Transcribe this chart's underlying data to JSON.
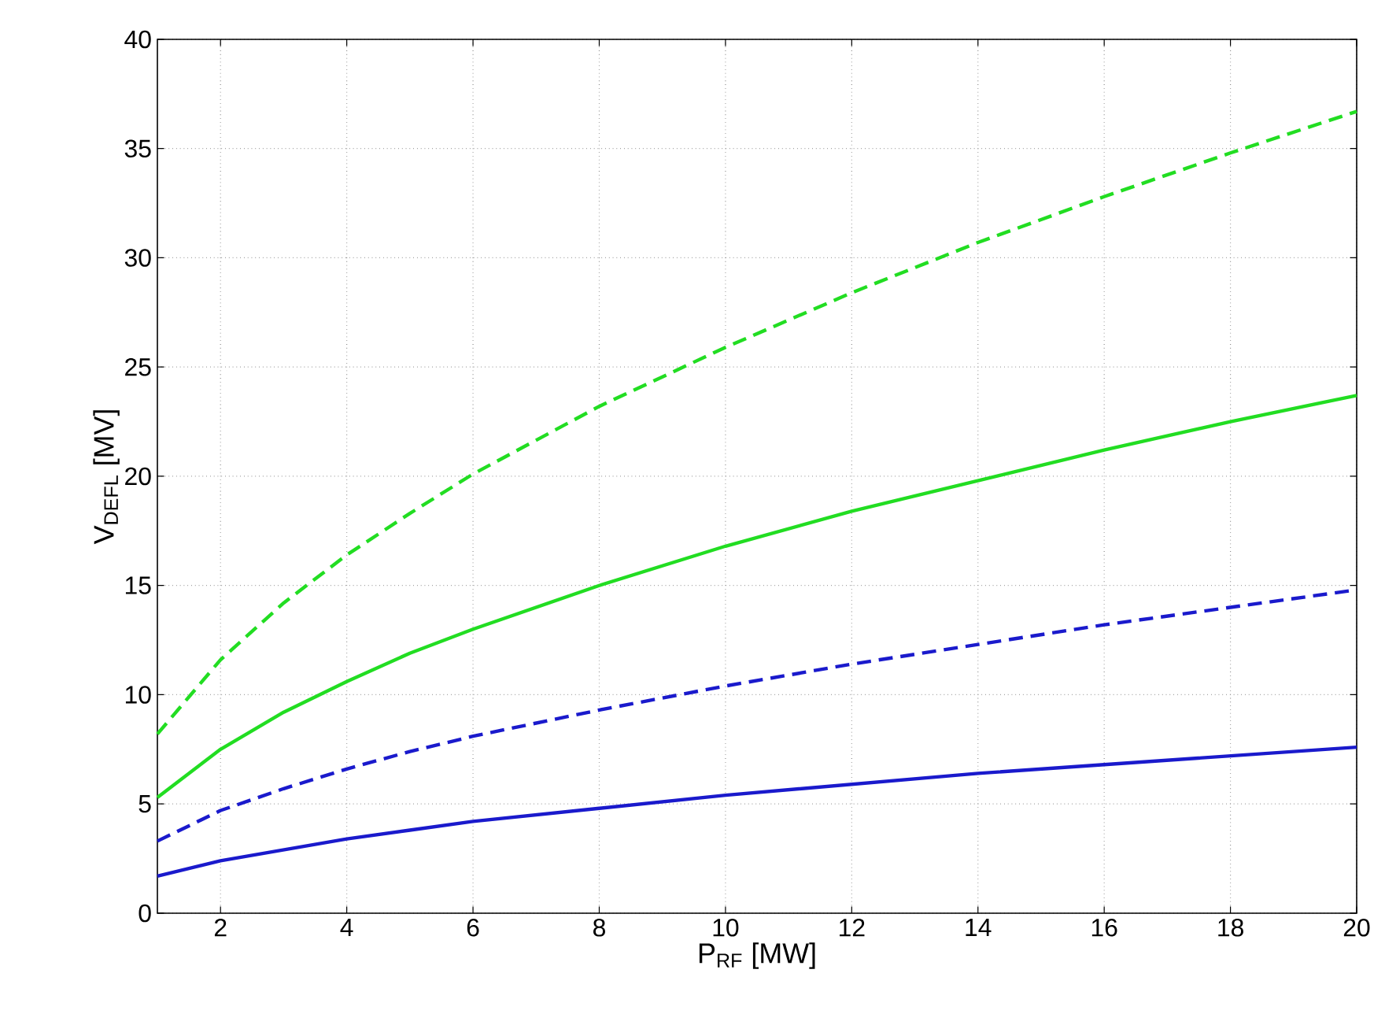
{
  "chart_data": {
    "type": "line",
    "xlabel": "P$_{RF}$ [MW]",
    "ylabel": "V$_{DEFL}$ [MV]",
    "xlim": [
      1,
      20
    ],
    "ylim": [
      0,
      40
    ],
    "xticks": [
      2,
      4,
      6,
      8,
      10,
      12,
      14,
      16,
      18,
      20
    ],
    "yticks": [
      0,
      5,
      10,
      15,
      20,
      25,
      30,
      35,
      40
    ],
    "grid": true,
    "marker": "none",
    "x": [
      1,
      2,
      3,
      4,
      5,
      6,
      8,
      10,
      12,
      14,
      16,
      18,
      20
    ],
    "series": [
      {
        "color": "#22dd22",
        "line_style": "dashed",
        "values": [
          8.2,
          11.6,
          14.2,
          16.4,
          18.3,
          20.1,
          23.2,
          25.9,
          28.4,
          30.7,
          32.8,
          34.8,
          36.7
        ]
      },
      {
        "color": "#22dd22",
        "line_style": "solid",
        "values": [
          5.3,
          7.5,
          9.2,
          10.6,
          11.9,
          13.0,
          15.0,
          16.8,
          18.4,
          19.8,
          21.2,
          22.5,
          23.7
        ]
      },
      {
        "color": "#1a1acc",
        "line_style": "dashed",
        "values": [
          3.3,
          4.7,
          5.7,
          6.6,
          7.4,
          8.1,
          9.3,
          10.4,
          11.4,
          12.3,
          13.2,
          14.0,
          14.8
        ]
      },
      {
        "color": "#1a1acc",
        "line_style": "solid",
        "values": [
          1.7,
          2.4,
          2.9,
          3.4,
          3.8,
          4.2,
          4.8,
          5.4,
          5.9,
          6.4,
          6.8,
          7.2,
          7.6
        ]
      }
    ]
  }
}
